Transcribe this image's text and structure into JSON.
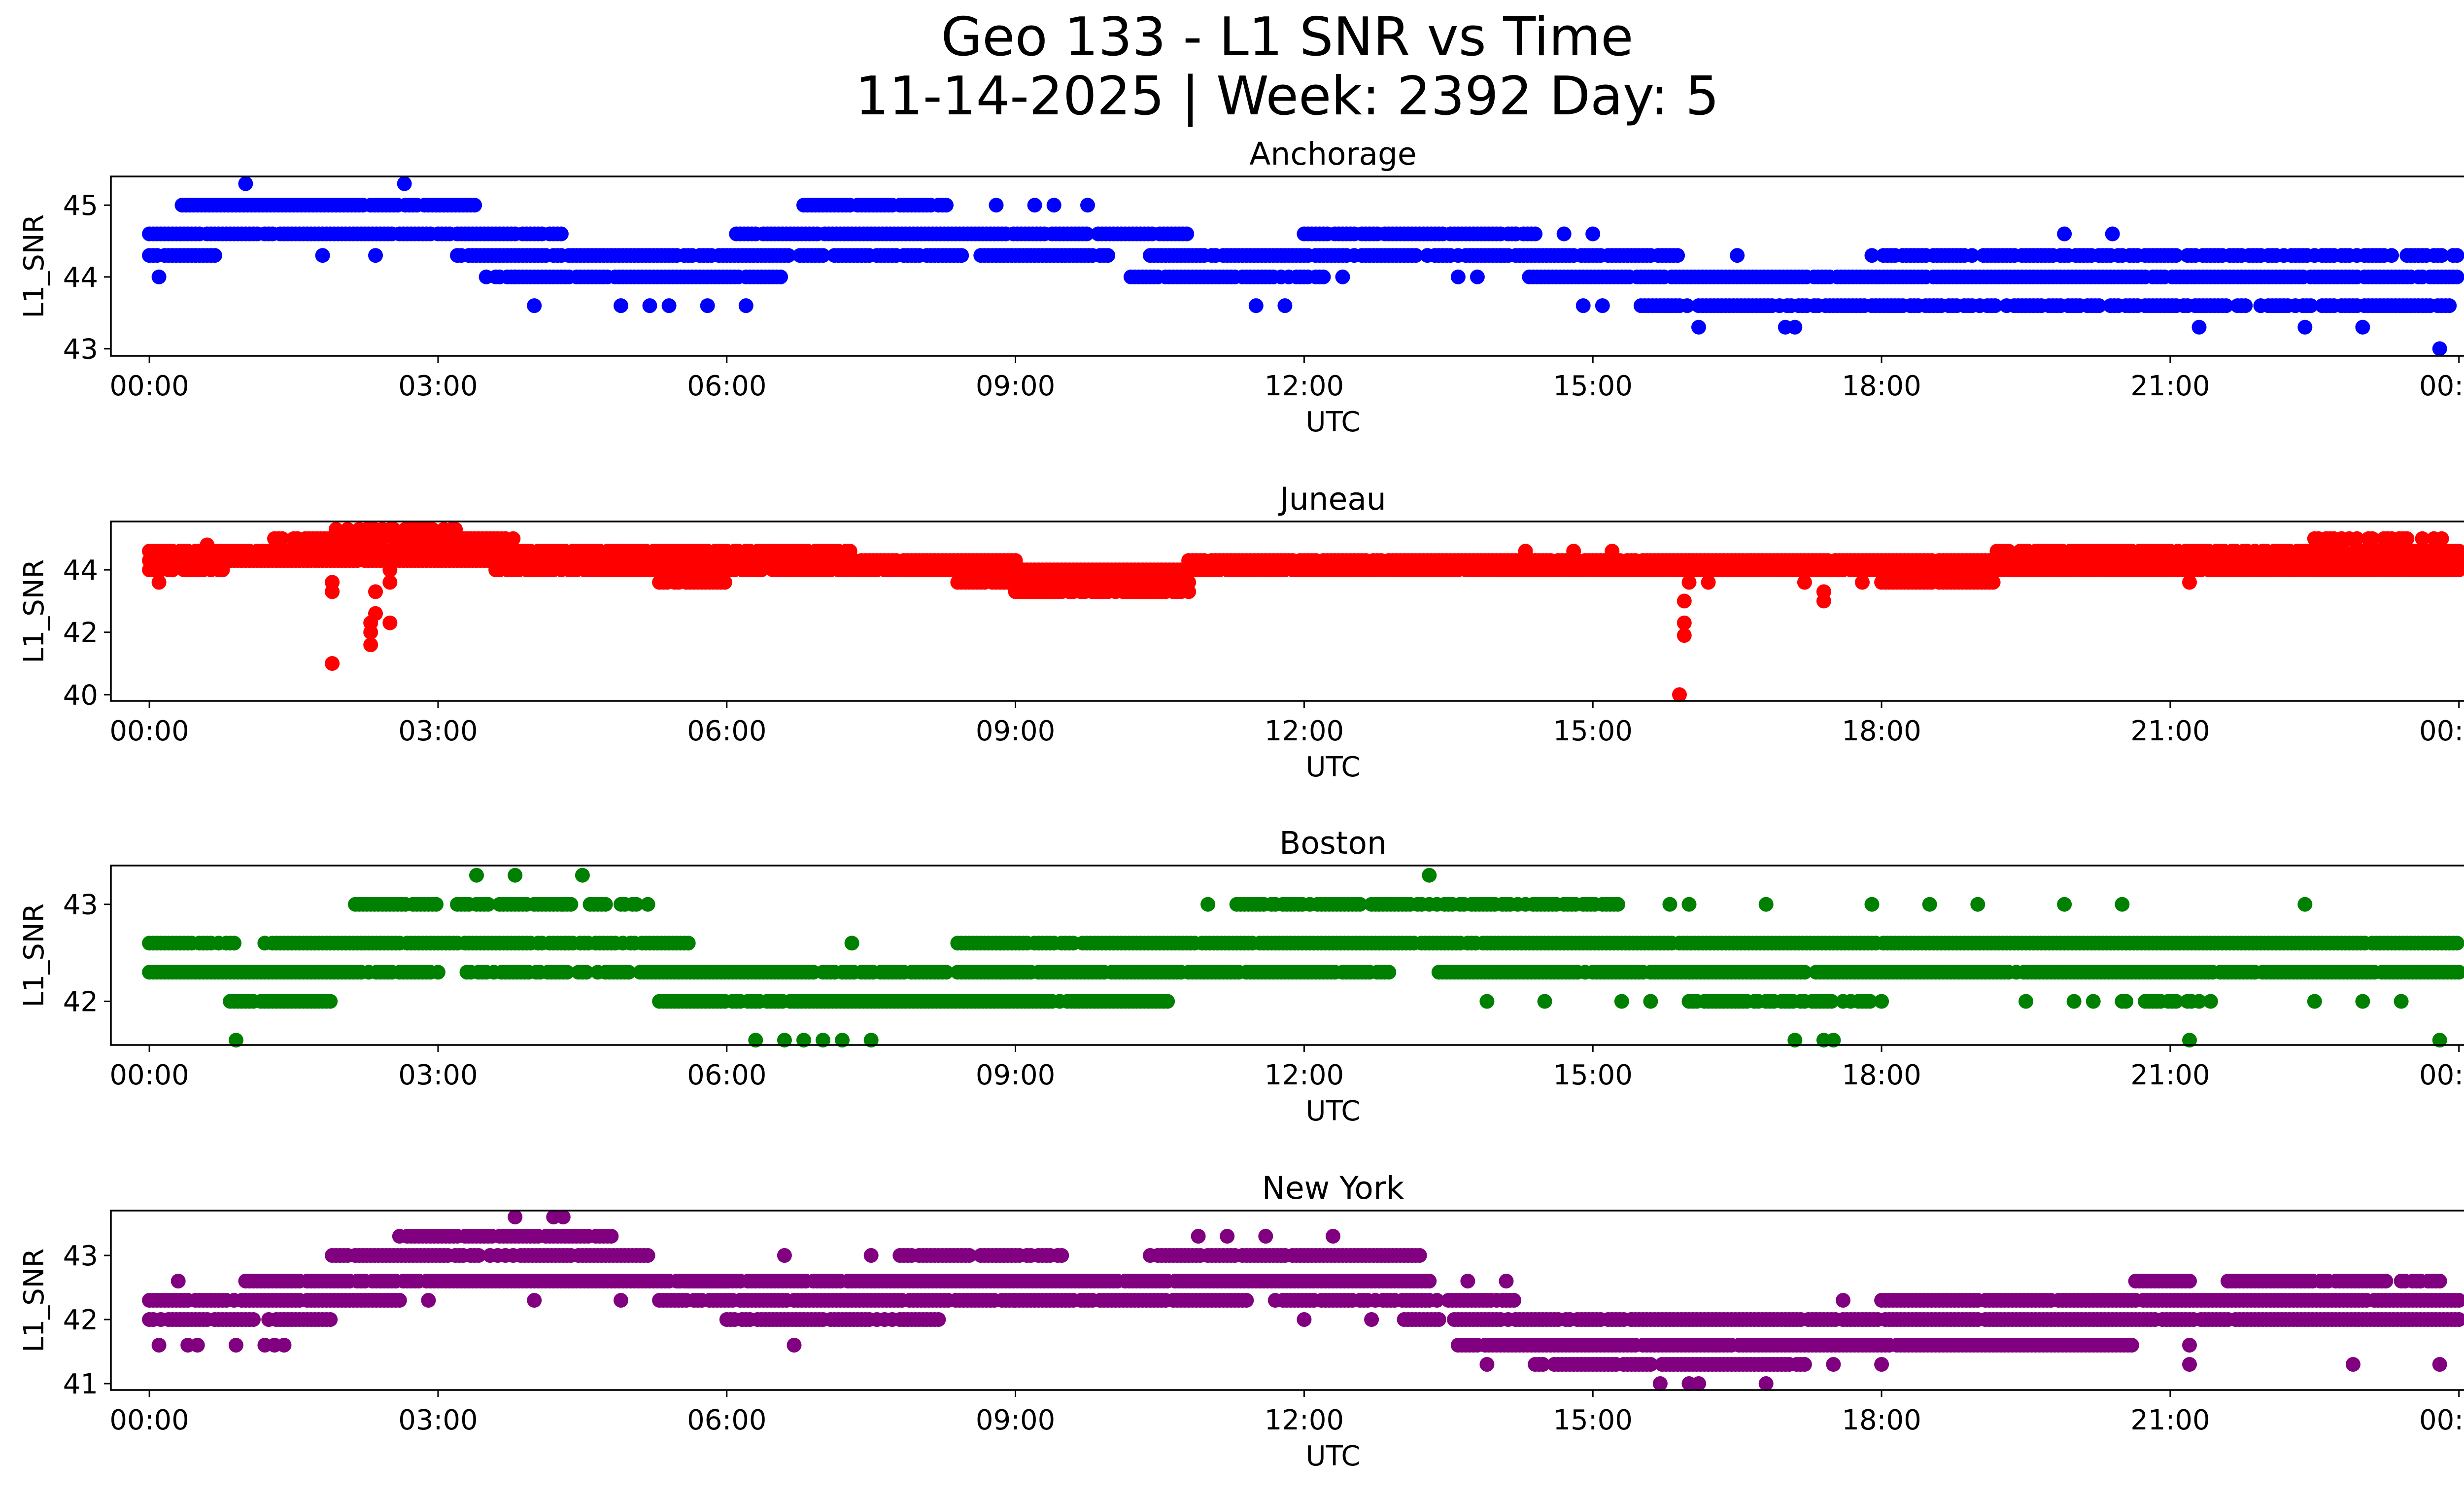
{
  "figure": {
    "title_line1": "Geo 133 - L1 SNR vs Time",
    "title_line2": "11-14-2025 | Week: 2392 Day: 5"
  },
  "chart_data": [
    {
      "type": "scatter",
      "title": "Anchorage",
      "xlabel": "UTC",
      "ylabel": "L1_SNR",
      "color": "#0000ff",
      "xlim_hours": [
        -0.4,
        25.0
      ],
      "ylim": [
        42.9,
        45.4
      ],
      "yticks": [
        43,
        44,
        45
      ],
      "xtick_labels": [
        "00:00",
        "03:00",
        "06:00",
        "09:00",
        "12:00",
        "15:00",
        "18:00",
        "21:00",
        "00:00"
      ],
      "bands": [
        {
          "y": 44.6,
          "start": 0.0,
          "end": 4.3,
          "density": 0.95
        },
        {
          "y": 44.3,
          "start": 0.0,
          "end": 0.7,
          "density": 0.9
        },
        {
          "y": 45.0,
          "start": 0.3,
          "end": 3.4,
          "density": 0.95
        },
        {
          "y": 44.3,
          "start": 3.2,
          "end": 10.0,
          "density": 0.92
        },
        {
          "y": 44.0,
          "start": 3.6,
          "end": 6.6,
          "density": 0.9
        },
        {
          "y": 44.6,
          "start": 6.1,
          "end": 10.8,
          "density": 0.92
        },
        {
          "y": 45.0,
          "start": 6.8,
          "end": 8.3,
          "density": 0.85
        },
        {
          "y": 44.0,
          "start": 10.2,
          "end": 12.2,
          "density": 0.85
        },
        {
          "y": 44.3,
          "start": 10.4,
          "end": 15.9,
          "density": 0.9
        },
        {
          "y": 44.6,
          "start": 12.0,
          "end": 14.5,
          "density": 0.9
        },
        {
          "y": 44.0,
          "start": 14.3,
          "end": 24.0,
          "density": 0.95
        },
        {
          "y": 43.6,
          "start": 15.5,
          "end": 24.0,
          "density": 0.85
        },
        {
          "y": 44.3,
          "start": 17.9,
          "end": 24.0,
          "density": 0.8
        }
      ],
      "extra_points": [
        [
          0.1,
          44.0
        ],
        [
          1.0,
          45.3
        ],
        [
          1.8,
          44.3
        ],
        [
          2.35,
          44.3
        ],
        [
          2.65,
          45.3
        ],
        [
          3.5,
          44.0
        ],
        [
          3.8,
          44.0
        ],
        [
          4.0,
          43.6
        ],
        [
          4.9,
          43.6
        ],
        [
          5.2,
          43.6
        ],
        [
          5.4,
          43.6
        ],
        [
          5.8,
          43.6
        ],
        [
          6.2,
          43.6
        ],
        [
          8.8,
          45.0
        ],
        [
          9.2,
          45.0
        ],
        [
          9.4,
          45.0
        ],
        [
          9.75,
          45.0
        ],
        [
          11.5,
          43.6
        ],
        [
          11.8,
          43.6
        ],
        [
          12.4,
          44.0
        ],
        [
          13.6,
          44.0
        ],
        [
          13.8,
          44.0
        ],
        [
          14.2,
          44.6
        ],
        [
          14.7,
          44.6
        ],
        [
          15.0,
          44.6
        ],
        [
          14.9,
          43.6
        ],
        [
          15.1,
          43.6
        ],
        [
          16.1,
          43.3
        ],
        [
          16.5,
          44.3
        ],
        [
          17.0,
          43.3
        ],
        [
          17.1,
          43.3
        ],
        [
          19.9,
          44.6
        ],
        [
          20.4,
          44.6
        ],
        [
          21.3,
          43.3
        ],
        [
          22.4,
          43.3
        ],
        [
          23.0,
          43.3
        ],
        [
          23.8,
          43.0
        ]
      ]
    },
    {
      "type": "scatter",
      "title": "Juneau",
      "xlabel": "UTC",
      "ylabel": "L1_SNR",
      "color": "#ff0000",
      "xlim_hours": [
        -0.4,
        25.0
      ],
      "ylim": [
        39.8,
        45.55
      ],
      "yticks": [
        40,
        42,
        44
      ],
      "xtick_labels": [
        "00:00",
        "03:00",
        "06:00",
        "09:00",
        "12:00",
        "15:00",
        "18:00",
        "21:00",
        "00:00"
      ],
      "bands": [
        {
          "y": 44.3,
          "start": 0.0,
          "end": 9.0,
          "density": 0.97
        },
        {
          "y": 44.6,
          "start": 0.0,
          "end": 7.3,
          "density": 0.9
        },
        {
          "y": 44.0,
          "start": 0.0,
          "end": 0.8,
          "density": 0.8
        },
        {
          "y": 45.0,
          "start": 1.3,
          "end": 3.8,
          "density": 0.85
        },
        {
          "y": 45.3,
          "start": 1.9,
          "end": 3.2,
          "density": 0.6
        },
        {
          "y": 44.0,
          "start": 3.6,
          "end": 9.0,
          "density": 0.85
        },
        {
          "y": 43.6,
          "start": 5.3,
          "end": 6.0,
          "density": 0.9
        },
        {
          "y": 43.6,
          "start": 8.4,
          "end": 10.8,
          "density": 0.95
        },
        {
          "y": 43.3,
          "start": 9.0,
          "end": 10.8,
          "density": 0.9
        },
        {
          "y": 44.0,
          "start": 8.6,
          "end": 24.0,
          "density": 0.97
        },
        {
          "y": 44.3,
          "start": 10.8,
          "end": 24.0,
          "density": 0.95
        },
        {
          "y": 43.6,
          "start": 18.0,
          "end": 19.2,
          "density": 0.9
        },
        {
          "y": 44.6,
          "start": 19.2,
          "end": 24.0,
          "density": 0.9
        },
        {
          "y": 45.0,
          "start": 22.5,
          "end": 23.9,
          "density": 0.5
        }
      ],
      "extra_points": [
        [
          0.1,
          43.6
        ],
        [
          0.6,
          44.8
        ],
        [
          1.9,
          41.0
        ],
        [
          1.9,
          43.3
        ],
        [
          1.9,
          43.6
        ],
        [
          2.3,
          41.6
        ],
        [
          2.3,
          42.0
        ],
        [
          2.3,
          42.3
        ],
        [
          2.35,
          42.6
        ],
        [
          2.35,
          43.3
        ],
        [
          2.5,
          42.3
        ],
        [
          2.5,
          43.6
        ],
        [
          2.5,
          44.0
        ],
        [
          2.6,
          45.0
        ],
        [
          15.9,
          40.0
        ],
        [
          15.95,
          41.9
        ],
        [
          15.95,
          42.3
        ],
        [
          15.95,
          43.0
        ],
        [
          16.0,
          43.6
        ],
        [
          16.2,
          43.6
        ],
        [
          17.2,
          43.6
        ],
        [
          17.4,
          43.0
        ],
        [
          17.4,
          43.3
        ],
        [
          17.8,
          43.6
        ],
        [
          21.2,
          43.6
        ],
        [
          14.3,
          44.6
        ],
        [
          14.8,
          44.6
        ],
        [
          15.2,
          44.6
        ]
      ]
    },
    {
      "type": "scatter",
      "title": "Boston",
      "xlabel": "UTC",
      "ylabel": "L1_SNR",
      "color": "#008000",
      "xlim_hours": [
        -0.4,
        25.0
      ],
      "ylim": [
        41.55,
        43.4
      ],
      "yticks": [
        42,
        43
      ],
      "xtick_labels": [
        "00:00",
        "03:00",
        "06:00",
        "09:00",
        "12:00",
        "15:00",
        "18:00",
        "21:00",
        "00:00"
      ],
      "bands": [
        {
          "y": 42.6,
          "start": 0.0,
          "end": 0.9,
          "density": 0.95
        },
        {
          "y": 42.3,
          "start": 0.0,
          "end": 3.0,
          "density": 0.95
        },
        {
          "y": 42.0,
          "start": 0.8,
          "end": 1.9,
          "density": 0.9
        },
        {
          "y": 42.6,
          "start": 1.2,
          "end": 5.6,
          "density": 0.95
        },
        {
          "y": 43.0,
          "start": 2.1,
          "end": 3.0,
          "density": 0.85
        },
        {
          "y": 43.0,
          "start": 3.2,
          "end": 4.3,
          "density": 0.8
        },
        {
          "y": 43.0,
          "start": 4.3,
          "end": 5.2,
          "density": 0.85
        },
        {
          "y": 42.3,
          "start": 3.3,
          "end": 5.0,
          "density": 0.8
        },
        {
          "y": 42.3,
          "start": 5.1,
          "end": 6.9,
          "density": 0.95
        },
        {
          "y": 42.0,
          "start": 5.3,
          "end": 10.6,
          "density": 0.95
        },
        {
          "y": 42.3,
          "start": 7.0,
          "end": 12.9,
          "density": 0.95
        },
        {
          "y": 42.6,
          "start": 8.4,
          "end": 9.6,
          "density": 0.85
        },
        {
          "y": 42.6,
          "start": 9.7,
          "end": 24.0,
          "density": 0.98
        },
        {
          "y": 43.0,
          "start": 11.3,
          "end": 15.3,
          "density": 0.85
        },
        {
          "y": 42.3,
          "start": 13.4,
          "end": 24.0,
          "density": 0.97
        },
        {
          "y": 42.0,
          "start": 16.0,
          "end": 18.0,
          "density": 0.75
        },
        {
          "y": 42.0,
          "start": 20.5,
          "end": 21.5,
          "density": 0.75
        }
      ],
      "extra_points": [
        [
          0.9,
          41.6
        ],
        [
          3.4,
          43.3
        ],
        [
          3.8,
          43.3
        ],
        [
          4.5,
          43.3
        ],
        [
          6.3,
          41.6
        ],
        [
          6.6,
          41.6
        ],
        [
          6.8,
          41.6
        ],
        [
          7.0,
          41.6
        ],
        [
          7.2,
          41.6
        ],
        [
          7.5,
          41.6
        ],
        [
          7.3,
          42.6
        ],
        [
          11.0,
          43.0
        ],
        [
          13.3,
          43.3
        ],
        [
          13.9,
          42.0
        ],
        [
          14.5,
          42.0
        ],
        [
          15.3,
          42.0
        ],
        [
          15.6,
          42.0
        ],
        [
          15.8,
          43.0
        ],
        [
          16.8,
          43.0
        ],
        [
          17.1,
          41.6
        ],
        [
          17.4,
          41.6
        ],
        [
          17.5,
          41.6
        ],
        [
          17.9,
          43.0
        ],
        [
          18.5,
          43.0
        ],
        [
          19.0,
          43.0
        ],
        [
          19.5,
          42.0
        ],
        [
          20.0,
          42.0
        ],
        [
          20.5,
          43.0
        ],
        [
          21.2,
          41.6
        ],
        [
          22.4,
          43.0
        ],
        [
          22.5,
          42.0
        ],
        [
          23.4,
          42.0
        ],
        [
          23.8,
          41.6
        ],
        [
          16.0,
          43.0
        ],
        [
          19.9,
          43.0
        ],
        [
          20.2,
          42.0
        ],
        [
          23.0,
          42.0
        ]
      ]
    },
    {
      "type": "scatter",
      "title": "New York",
      "xlabel": "UTC",
      "ylabel": "L1_SNR",
      "color": "#800080",
      "xlim_hours": [
        -0.4,
        25.0
      ],
      "ylim": [
        40.9,
        43.7
      ],
      "yticks": [
        41,
        42,
        43
      ],
      "xtick_labels": [
        "00:00",
        "03:00",
        "06:00",
        "09:00",
        "12:00",
        "15:00",
        "18:00",
        "21:00",
        "00:00"
      ],
      "bands": [
        {
          "y": 42.3,
          "start": 0.0,
          "end": 2.6,
          "density": 0.95
        },
        {
          "y": 42.0,
          "start": 0.0,
          "end": 1.9,
          "density": 0.9
        },
        {
          "y": 42.6,
          "start": 1.0,
          "end": 6.0,
          "density": 0.95
        },
        {
          "y": 43.0,
          "start": 1.9,
          "end": 5.2,
          "density": 0.9
        },
        {
          "y": 43.3,
          "start": 2.6,
          "end": 4.8,
          "density": 0.9
        },
        {
          "y": 42.3,
          "start": 5.3,
          "end": 9.0,
          "density": 0.95
        },
        {
          "y": 42.6,
          "start": 5.5,
          "end": 13.3,
          "density": 0.97
        },
        {
          "y": 42.0,
          "start": 6.0,
          "end": 8.2,
          "density": 0.85
        },
        {
          "y": 43.0,
          "start": 7.8,
          "end": 9.5,
          "density": 0.85
        },
        {
          "y": 42.3,
          "start": 9.0,
          "end": 11.4,
          "density": 0.9
        },
        {
          "y": 43.0,
          "start": 10.4,
          "end": 13.2,
          "density": 0.9
        },
        {
          "y": 42.3,
          "start": 11.7,
          "end": 13.4,
          "density": 0.85
        },
        {
          "y": 42.0,
          "start": 13.0,
          "end": 14.2,
          "density": 0.9
        },
        {
          "y": 42.3,
          "start": 13.5,
          "end": 14.2,
          "density": 0.85
        },
        {
          "y": 41.6,
          "start": 13.6,
          "end": 20.6,
          "density": 0.97
        },
        {
          "y": 42.0,
          "start": 14.2,
          "end": 15.4,
          "density": 0.85
        },
        {
          "y": 41.3,
          "start": 14.4,
          "end": 17.2,
          "density": 0.95
        },
        {
          "y": 42.0,
          "start": 15.4,
          "end": 24.0,
          "density": 0.97
        },
        {
          "y": 42.3,
          "start": 18.0,
          "end": 24.0,
          "density": 0.95
        },
        {
          "y": 42.6,
          "start": 20.6,
          "end": 21.2,
          "density": 0.85
        },
        {
          "y": 42.6,
          "start": 21.6,
          "end": 23.8,
          "density": 0.9
        }
      ],
      "extra_points": [
        [
          0.1,
          41.6
        ],
        [
          0.3,
          42.6
        ],
        [
          0.4,
          41.6
        ],
        [
          0.5,
          41.6
        ],
        [
          0.9,
          41.6
        ],
        [
          1.2,
          41.6
        ],
        [
          1.3,
          41.6
        ],
        [
          1.4,
          41.6
        ],
        [
          3.8,
          43.6
        ],
        [
          4.2,
          43.6
        ],
        [
          4.3,
          43.6
        ],
        [
          2.9,
          42.3
        ],
        [
          4.0,
          42.3
        ],
        [
          4.9,
          42.3
        ],
        [
          6.7,
          41.6
        ],
        [
          6.6,
          43.0
        ],
        [
          7.5,
          43.0
        ],
        [
          10.9,
          43.3
        ],
        [
          11.2,
          43.3
        ],
        [
          11.6,
          43.3
        ],
        [
          12.3,
          43.3
        ],
        [
          12.0,
          42.0
        ],
        [
          12.7,
          42.0
        ],
        [
          13.7,
          42.6
        ],
        [
          14.1,
          42.6
        ],
        [
          13.9,
          41.3
        ],
        [
          14.0,
          42.3
        ],
        [
          15.7,
          41.0
        ],
        [
          16.0,
          41.0
        ],
        [
          16.1,
          41.0
        ],
        [
          16.8,
          41.0
        ],
        [
          17.5,
          41.3
        ],
        [
          18.0,
          41.3
        ],
        [
          17.6,
          42.3
        ],
        [
          21.2,
          41.6
        ],
        [
          21.2,
          41.3
        ],
        [
          22.9,
          41.3
        ],
        [
          23.8,
          41.3
        ],
        [
          23.6,
          42.6
        ],
        [
          21.6,
          42.6
        ]
      ]
    }
  ]
}
